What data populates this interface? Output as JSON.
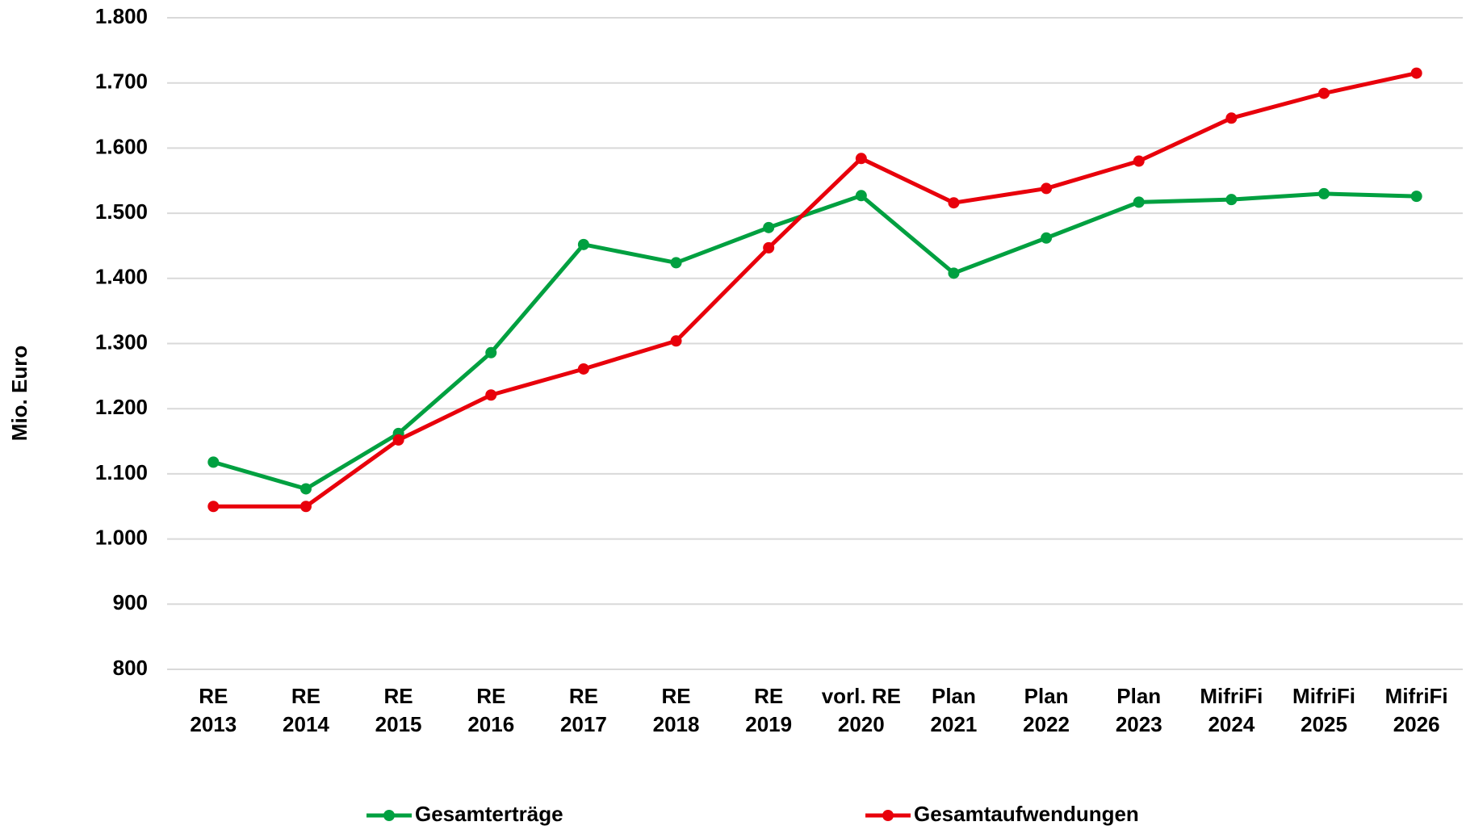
{
  "chart_data": {
    "type": "line",
    "y_label": "Mio. Euro",
    "categories": [
      "RE\n2013",
      "RE\n2014",
      "RE\n2015",
      "RE\n2016",
      "RE\n2017",
      "RE\n2018",
      "RE\n2019",
      "vorl. RE\n2020",
      "Plan\n2021",
      "Plan\n2022",
      "Plan\n2023",
      "MifriFi\n2024",
      "MifriFi\n2025",
      "MifriFi\n2026"
    ],
    "series": [
      {
        "name": "Gesamterträge",
        "color": "#00a040",
        "values": [
          1118,
          1077,
          1162,
          1286,
          1452,
          1424,
          1478,
          1527,
          1408,
          1462,
          1517,
          1521,
          1530,
          1526
        ]
      },
      {
        "name": "Gesamtaufwendungen",
        "color": "#e8000b",
        "values": [
          1050,
          1050,
          1152,
          1221,
          1261,
          1304,
          1447,
          1584,
          1516,
          1538,
          1580,
          1646,
          1684,
          1715
        ]
      }
    ],
    "ylim": [
      800,
      1800
    ],
    "yticks": [
      800,
      900,
      {
        "value": 1000,
        "label": "1.000"
      },
      {
        "value": 1100,
        "label": "1.100"
      },
      {
        "value": 1200,
        "label": "1.200"
      },
      {
        "value": 1300,
        "label": "1.300"
      },
      {
        "value": 1400,
        "label": "1.400"
      },
      {
        "value": 1500,
        "label": "1.500"
      },
      {
        "value": 1600,
        "label": "1.600"
      },
      {
        "value": 1700,
        "label": "1.700"
      },
      {
        "value": 1800,
        "label": "1.800"
      }
    ],
    "grid": true,
    "legend": "bottom"
  }
}
